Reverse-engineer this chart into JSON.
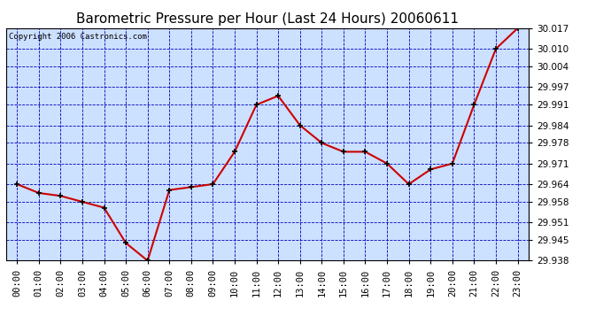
{
  "title": "Barometric Pressure per Hour (Last 24 Hours) 20060611",
  "copyright": "Copyright 2006 Castronics.com",
  "background_color": "#ffffff",
  "plot_bg_color": "#cce0ff",
  "grid_color": "#0000bb",
  "line_color": "#cc0000",
  "marker_color": "#000000",
  "hours": [
    "00:00",
    "01:00",
    "02:00",
    "03:00",
    "04:00",
    "05:00",
    "06:00",
    "07:00",
    "08:00",
    "09:00",
    "10:00",
    "11:00",
    "12:00",
    "13:00",
    "14:00",
    "15:00",
    "16:00",
    "17:00",
    "18:00",
    "19:00",
    "20:00",
    "21:00",
    "22:00",
    "23:00"
  ],
  "values": [
    29.964,
    29.961,
    29.96,
    29.958,
    29.956,
    29.944,
    29.938,
    29.962,
    29.963,
    29.964,
    29.975,
    29.991,
    29.994,
    29.984,
    29.978,
    29.975,
    29.975,
    29.971,
    29.964,
    29.969,
    29.971,
    29.991,
    30.01,
    30.017
  ],
  "ylim_min": 29.938,
  "ylim_max": 30.017,
  "yticks": [
    29.938,
    29.945,
    29.951,
    29.958,
    29.964,
    29.971,
    29.978,
    29.984,
    29.991,
    29.997,
    30.004,
    30.01,
    30.017
  ],
  "title_fontsize": 11,
  "tick_fontsize": 7.5,
  "copyright_fontsize": 6.5,
  "fig_width": 6.9,
  "fig_height": 3.75,
  "dpi": 100
}
